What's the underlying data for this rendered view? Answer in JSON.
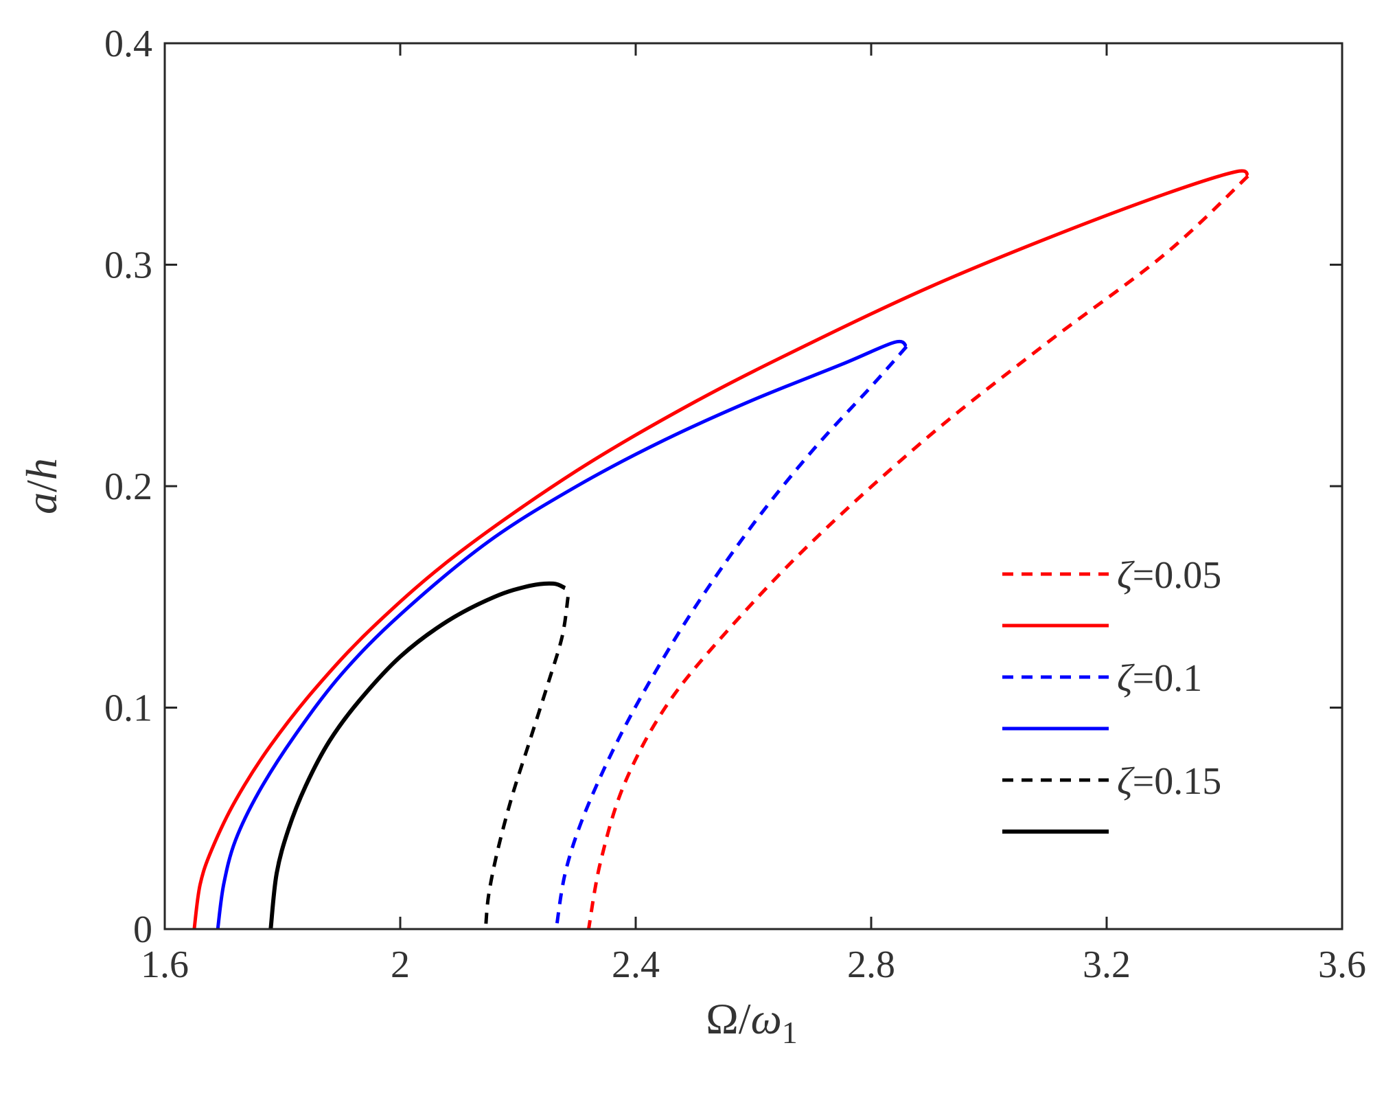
{
  "chart_data": {
    "type": "line",
    "title": "",
    "xlabel": {
      "main": "Ω/",
      "var": "ω",
      "sub": "1"
    },
    "ylabel": {
      "var1": "a",
      "sep": "/",
      "var2": "h"
    },
    "xlim": [
      1.6,
      3.6
    ],
    "ylim": [
      0,
      0.4
    ],
    "xticks": [
      1.6,
      2.0,
      2.4,
      2.8,
      3.2,
      3.6
    ],
    "xtick_labels": [
      "1.6",
      "2",
      "2.4",
      "2.8",
      "3.2",
      "3.6"
    ],
    "yticks": [
      0,
      0.1,
      0.2,
      0.3,
      0.4
    ],
    "ytick_labels": [
      "0",
      "0.1",
      "0.2",
      "0.3",
      "0.4"
    ],
    "grid": false,
    "legend_position": "right",
    "legend": [
      {
        "symbol": "ζ",
        "value": "=0.05",
        "color": "#ff0000",
        "style": "dashed"
      },
      {
        "symbol": "",
        "value": "",
        "color": "#ff0000",
        "style": "solid"
      },
      {
        "symbol": "ζ",
        "value": "=0.1",
        "color": "#0000ff",
        "style": "dashed"
      },
      {
        "symbol": "",
        "value": "",
        "color": "#0000ff",
        "style": "solid"
      },
      {
        "symbol": "ζ",
        "value": "=0.15",
        "color": "#000000",
        "style": "dashed"
      },
      {
        "symbol": "",
        "value": "",
        "color": "#000000",
        "style": "solid"
      }
    ],
    "series": [
      {
        "name": "zeta-0.05-stable",
        "zeta": 0.05,
        "color": "#ff0000",
        "style": "solid",
        "x": [
          1.65,
          1.66,
          1.68,
          1.72,
          1.78,
          1.86,
          1.96,
          2.1,
          2.3,
          2.5,
          2.7,
          2.9,
          3.1,
          3.3,
          3.42,
          3.44
        ],
        "y": [
          0.0,
          0.02,
          0.036,
          0.058,
          0.083,
          0.11,
          0.138,
          0.17,
          0.207,
          0.238,
          0.265,
          0.29,
          0.312,
          0.332,
          0.342,
          0.34
        ]
      },
      {
        "name": "zeta-0.05-unstable",
        "zeta": 0.05,
        "color": "#ff0000",
        "style": "dashed",
        "x": [
          3.44,
          3.3,
          3.1,
          2.9,
          2.7,
          2.55,
          2.45,
          2.38,
          2.34,
          2.32
        ],
        "y": [
          0.34,
          0.305,
          0.265,
          0.223,
          0.175,
          0.133,
          0.1,
          0.065,
          0.03,
          0.0
        ]
      },
      {
        "name": "zeta-0.1-stable",
        "zeta": 0.1,
        "color": "#0000ff",
        "style": "solid",
        "x": [
          1.69,
          1.7,
          1.72,
          1.76,
          1.82,
          1.9,
          2.0,
          2.15,
          2.3,
          2.45,
          2.6,
          2.75,
          2.84,
          2.86
        ],
        "y": [
          0.0,
          0.02,
          0.04,
          0.062,
          0.087,
          0.115,
          0.142,
          0.175,
          0.2,
          0.221,
          0.239,
          0.255,
          0.265,
          0.263
        ]
      },
      {
        "name": "zeta-0.1-unstable",
        "zeta": 0.1,
        "color": "#0000ff",
        "style": "dashed",
        "x": [
          2.86,
          2.8,
          2.7,
          2.6,
          2.5,
          2.42,
          2.36,
          2.31,
          2.28,
          2.265
        ],
        "y": [
          0.263,
          0.245,
          0.216,
          0.183,
          0.145,
          0.11,
          0.08,
          0.05,
          0.025,
          0.0
        ]
      },
      {
        "name": "zeta-0.15-stable",
        "zeta": 0.15,
        "color": "#000000",
        "style": "solid",
        "x": [
          1.78,
          1.79,
          1.81,
          1.84,
          1.88,
          1.93,
          2.0,
          2.08,
          2.16,
          2.22,
          2.26,
          2.28
        ],
        "y": [
          0.0,
          0.025,
          0.045,
          0.065,
          0.085,
          0.103,
          0.123,
          0.139,
          0.15,
          0.155,
          0.156,
          0.154
        ]
      },
      {
        "name": "zeta-0.15-unstable",
        "zeta": 0.15,
        "color": "#000000",
        "style": "dashed",
        "x": [
          2.285,
          2.275,
          2.25,
          2.22,
          2.19,
          2.165,
          2.15,
          2.145
        ],
        "y": [
          0.15,
          0.132,
          0.11,
          0.085,
          0.06,
          0.035,
          0.015,
          0.0
        ]
      }
    ]
  }
}
